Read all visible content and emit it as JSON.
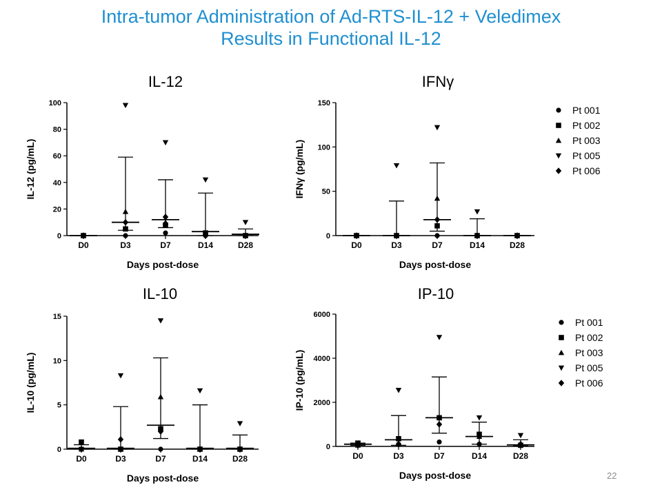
{
  "slide": {
    "title_line1": "Intra-tumor Administration of Ad-RTS-IL-12 + Veledimex",
    "title_line2": "Results in Functional IL-12",
    "page_number": "22"
  },
  "legend_markers": {
    "Pt 001": "circle",
    "Pt 002": "square",
    "Pt 003": "triangle-up",
    "Pt 005": "triangle-down",
    "Pt 006": "diamond"
  },
  "chart_data": [
    {
      "type": "scatter",
      "title": "IL-12",
      "xlabel": "Days post-dose",
      "ylabel": "IL-12 (pg/mL)",
      "categories": [
        "D0",
        "D3",
        "D7",
        "D14",
        "D28"
      ],
      "ylim": [
        0,
        100
      ],
      "yticks": [
        0,
        20,
        40,
        60,
        80,
        100
      ],
      "legend": false,
      "series": [
        {
          "name": "Pt 001",
          "values": [
            0,
            0,
            2,
            0,
            0
          ]
        },
        {
          "name": "Pt 002",
          "values": [
            0,
            5,
            8,
            2,
            0
          ]
        },
        {
          "name": "Pt 003",
          "values": [
            0,
            18,
            10,
            2,
            0
          ]
        },
        {
          "name": "Pt 005",
          "values": [
            0,
            98,
            70,
            42,
            10
          ]
        },
        {
          "name": "Pt 006",
          "values": [
            0,
            10,
            14,
            0,
            0
          ]
        }
      ],
      "summary": {
        "center": [
          0,
          10,
          12,
          3,
          1
        ],
        "upper": [
          0,
          59,
          42,
          32,
          5
        ],
        "lower": [
          0,
          4,
          6,
          0,
          0
        ]
      }
    },
    {
      "type": "scatter",
      "title": "IFNγ",
      "xlabel": "Days post-dose",
      "ylabel": "IFNγ (pg/mL)",
      "categories": [
        "D0",
        "D3",
        "D7",
        "D14",
        "D28"
      ],
      "ylim": [
        0,
        150
      ],
      "yticks": [
        0,
        50,
        100,
        150
      ],
      "legend": true,
      "series": [
        {
          "name": "Pt 001",
          "values": [
            0,
            0,
            0,
            0,
            0
          ]
        },
        {
          "name": "Pt 002",
          "values": [
            0,
            0,
            11,
            0,
            0
          ]
        },
        {
          "name": "Pt 003",
          "values": [
            0,
            0,
            42,
            0,
            0
          ]
        },
        {
          "name": "Pt 005",
          "values": [
            0,
            79,
            122,
            27,
            0
          ]
        },
        {
          "name": "Pt 006",
          "values": [
            0,
            0,
            18,
            0,
            0
          ]
        }
      ],
      "summary": {
        "center": [
          0,
          0,
          18,
          0,
          0
        ],
        "upper": [
          0,
          39,
          82,
          19,
          0
        ],
        "lower": [
          0,
          0,
          5,
          0,
          0
        ]
      }
    },
    {
      "type": "scatter",
      "title": "IL-10",
      "xlabel": "Days post-dose",
      "ylabel": "IL-10 (pg/mL)",
      "categories": [
        "D0",
        "D3",
        "D7",
        "D14",
        "D28"
      ],
      "ylim": [
        0,
        15
      ],
      "yticks": [
        0,
        5,
        10,
        15
      ],
      "legend": false,
      "series": [
        {
          "name": "Pt 001",
          "values": [
            0,
            0,
            0,
            0,
            0
          ]
        },
        {
          "name": "Pt 002",
          "values": [
            0.8,
            0,
            2.3,
            0,
            0
          ]
        },
        {
          "name": "Pt 003",
          "values": [
            0,
            0,
            5.9,
            0,
            0
          ]
        },
        {
          "name": "Pt 005",
          "values": [
            0,
            8.3,
            14.5,
            6.6,
            2.9
          ]
        },
        {
          "name": "Pt 006",
          "values": [
            0,
            1.1,
            2.0,
            0,
            0
          ]
        }
      ],
      "summary": {
        "center": [
          0.1,
          0.1,
          2.7,
          0.1,
          0.1
        ],
        "upper": [
          0.5,
          4.8,
          10.3,
          5,
          1.6
        ],
        "lower": [
          0,
          0,
          1.2,
          0,
          0
        ]
      }
    },
    {
      "type": "scatter",
      "title": "IP-10",
      "xlabel": "Days post-dose",
      "ylabel": "IP-10 (pg/mL)",
      "categories": [
        "D0",
        "D3",
        "D7",
        "D14",
        "D28"
      ],
      "ylim": [
        0,
        6000
      ],
      "yticks": [
        0,
        2000,
        4000,
        6000
      ],
      "legend": true,
      "series": [
        {
          "name": "Pt 001",
          "values": [
            100,
            100,
            200,
            100,
            50
          ]
        },
        {
          "name": "Pt 002",
          "values": [
            150,
            350,
            1300,
            550,
            50
          ]
        },
        {
          "name": "Pt 003",
          "values": [
            50,
            150,
            1300,
            450,
            100
          ]
        },
        {
          "name": "Pt 005",
          "values": [
            150,
            2550,
            4950,
            1300,
            500
          ]
        },
        {
          "name": "Pt 006",
          "values": [
            50,
            100,
            1000,
            100,
            100
          ]
        }
      ],
      "summary": {
        "center": [
          100,
          300,
          1300,
          450,
          70
        ],
        "upper": [
          150,
          1400,
          3150,
          1100,
          300
        ],
        "lower": [
          50,
          50,
          600,
          100,
          30
        ]
      }
    }
  ]
}
